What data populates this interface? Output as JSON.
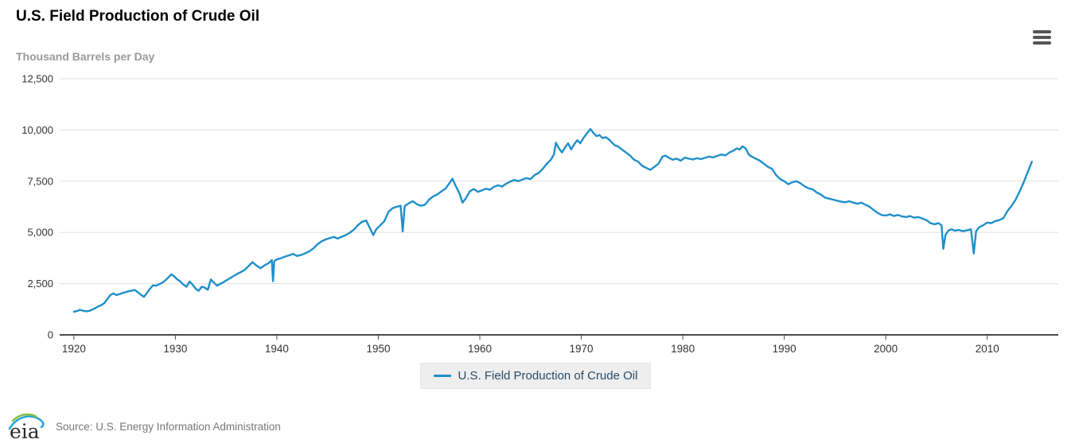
{
  "header": {
    "title": "U.S. Field Production of Crude Oil"
  },
  "toolbar": {
    "menu_icon": "hamburger-menu-icon"
  },
  "legend": {
    "label": "U.S. Field Production of Crude Oil"
  },
  "footer": {
    "logo_text": "eia",
    "source": "Source: U.S. Energy Information Administration"
  },
  "colors": {
    "line": "#1f8fca",
    "grid": "#e0e0e0",
    "axis": "#4a4a4a",
    "tick_label": "#333333",
    "subtitle": "#999999",
    "legend_text": "#294a66",
    "legend_bg": "#eeeeee",
    "menu_icon": "#555555",
    "logo_green": "#86bf40",
    "logo_blue": "#29a5dc"
  },
  "chart_data": {
    "type": "line",
    "title": "U.S. Field Production of Crude Oil",
    "ylabel": "Thousand Barrels per Day",
    "xlabel": "",
    "grid": true,
    "legend_position": "bottom-center",
    "xlim": [
      1918.6,
      2017.0
    ],
    "ylim": [
      0,
      12500
    ],
    "y_ticks": [
      {
        "v": 0,
        "label": "0"
      },
      {
        "v": 2500,
        "label": "2,500"
      },
      {
        "v": 5000,
        "label": "5,000"
      },
      {
        "v": 7500,
        "label": "7,500"
      },
      {
        "v": 10000,
        "label": "10,000"
      },
      {
        "v": 12500,
        "label": "12,500"
      }
    ],
    "x_ticks": [
      {
        "v": 1920,
        "label": "1920"
      },
      {
        "v": 1930,
        "label": "1930"
      },
      {
        "v": 1940,
        "label": "1940"
      },
      {
        "v": 1950,
        "label": "1950"
      },
      {
        "v": 1960,
        "label": "1960"
      },
      {
        "v": 1970,
        "label": "1970"
      },
      {
        "v": 1980,
        "label": "1980"
      },
      {
        "v": 1990,
        "label": "1990"
      },
      {
        "v": 2000,
        "label": "2000"
      },
      {
        "v": 2010,
        "label": "2010"
      }
    ],
    "series": [
      {
        "name": "U.S. Field Production of Crude Oil",
        "color": "#1f8fca",
        "points": [
          [
            1920.0,
            1130
          ],
          [
            1920.3,
            1160
          ],
          [
            1920.6,
            1220
          ],
          [
            1920.9,
            1180
          ],
          [
            1921.2,
            1150
          ],
          [
            1921.5,
            1170
          ],
          [
            1921.8,
            1230
          ],
          [
            1922.1,
            1300
          ],
          [
            1922.4,
            1390
          ],
          [
            1922.7,
            1450
          ],
          [
            1923.0,
            1550
          ],
          [
            1923.3,
            1750
          ],
          [
            1923.6,
            1950
          ],
          [
            1923.9,
            2020
          ],
          [
            1924.2,
            1940
          ],
          [
            1924.5,
            1990
          ],
          [
            1924.8,
            2040
          ],
          [
            1925.1,
            2080
          ],
          [
            1925.4,
            2130
          ],
          [
            1925.7,
            2160
          ],
          [
            1926.0,
            2190
          ],
          [
            1926.3,
            2080
          ],
          [
            1926.6,
            1960
          ],
          [
            1926.9,
            1850
          ],
          [
            1927.2,
            2050
          ],
          [
            1927.5,
            2250
          ],
          [
            1927.8,
            2420
          ],
          [
            1928.1,
            2400
          ],
          [
            1928.4,
            2470
          ],
          [
            1928.7,
            2540
          ],
          [
            1929.0,
            2650
          ],
          [
            1929.3,
            2800
          ],
          [
            1929.6,
            2950
          ],
          [
            1929.9,
            2850
          ],
          [
            1930.2,
            2700
          ],
          [
            1930.5,
            2600
          ],
          [
            1930.8,
            2450
          ],
          [
            1931.1,
            2350
          ],
          [
            1931.4,
            2600
          ],
          [
            1931.7,
            2450
          ],
          [
            1932.0,
            2250
          ],
          [
            1932.3,
            2150
          ],
          [
            1932.6,
            2350
          ],
          [
            1932.9,
            2300
          ],
          [
            1933.2,
            2200
          ],
          [
            1933.5,
            2700
          ],
          [
            1933.8,
            2550
          ],
          [
            1934.1,
            2400
          ],
          [
            1934.4,
            2480
          ],
          [
            1934.7,
            2560
          ],
          [
            1935.0,
            2650
          ],
          [
            1935.3,
            2740
          ],
          [
            1935.6,
            2830
          ],
          [
            1936.0,
            2950
          ],
          [
            1936.4,
            3050
          ],
          [
            1936.8,
            3160
          ],
          [
            1937.2,
            3350
          ],
          [
            1937.6,
            3550
          ],
          [
            1938.0,
            3380
          ],
          [
            1938.4,
            3250
          ],
          [
            1938.8,
            3400
          ],
          [
            1939.2,
            3500
          ],
          [
            1939.5,
            3650
          ],
          [
            1939.62,
            2620
          ],
          [
            1939.75,
            3600
          ],
          [
            1940.0,
            3680
          ],
          [
            1940.4,
            3740
          ],
          [
            1940.8,
            3820
          ],
          [
            1941.2,
            3880
          ],
          [
            1941.6,
            3950
          ],
          [
            1942.0,
            3850
          ],
          [
            1942.4,
            3900
          ],
          [
            1942.8,
            3980
          ],
          [
            1943.2,
            4080
          ],
          [
            1943.6,
            4220
          ],
          [
            1944.0,
            4420
          ],
          [
            1944.4,
            4560
          ],
          [
            1944.8,
            4660
          ],
          [
            1945.2,
            4720
          ],
          [
            1945.6,
            4780
          ],
          [
            1946.0,
            4700
          ],
          [
            1946.4,
            4790
          ],
          [
            1946.8,
            4870
          ],
          [
            1947.2,
            4990
          ],
          [
            1947.6,
            5140
          ],
          [
            1948.0,
            5360
          ],
          [
            1948.4,
            5520
          ],
          [
            1948.8,
            5580
          ],
          [
            1949.2,
            5180
          ],
          [
            1949.5,
            4870
          ],
          [
            1949.8,
            5150
          ],
          [
            1950.2,
            5350
          ],
          [
            1950.6,
            5550
          ],
          [
            1951.0,
            6000
          ],
          [
            1951.4,
            6180
          ],
          [
            1951.8,
            6250
          ],
          [
            1952.2,
            6300
          ],
          [
            1952.4,
            5050
          ],
          [
            1952.6,
            6280
          ],
          [
            1953.0,
            6420
          ],
          [
            1953.4,
            6520
          ],
          [
            1953.8,
            6380
          ],
          [
            1954.2,
            6300
          ],
          [
            1954.6,
            6350
          ],
          [
            1955.0,
            6600
          ],
          [
            1955.4,
            6750
          ],
          [
            1955.8,
            6850
          ],
          [
            1956.2,
            7000
          ],
          [
            1956.6,
            7130
          ],
          [
            1957.0,
            7400
          ],
          [
            1957.3,
            7620
          ],
          [
            1957.6,
            7300
          ],
          [
            1958.0,
            6900
          ],
          [
            1958.3,
            6450
          ],
          [
            1958.6,
            6650
          ],
          [
            1959.0,
            7000
          ],
          [
            1959.4,
            7120
          ],
          [
            1959.8,
            6980
          ],
          [
            1960.2,
            7050
          ],
          [
            1960.6,
            7130
          ],
          [
            1961.0,
            7080
          ],
          [
            1961.4,
            7230
          ],
          [
            1961.8,
            7300
          ],
          [
            1962.2,
            7240
          ],
          [
            1962.6,
            7380
          ],
          [
            1963.0,
            7480
          ],
          [
            1963.4,
            7560
          ],
          [
            1963.8,
            7500
          ],
          [
            1964.2,
            7580
          ],
          [
            1964.6,
            7650
          ],
          [
            1965.0,
            7600
          ],
          [
            1965.4,
            7800
          ],
          [
            1965.8,
            7900
          ],
          [
            1966.2,
            8100
          ],
          [
            1966.6,
            8350
          ],
          [
            1967.0,
            8550
          ],
          [
            1967.3,
            8800
          ],
          [
            1967.5,
            9380
          ],
          [
            1967.8,
            9100
          ],
          [
            1968.1,
            8900
          ],
          [
            1968.4,
            9150
          ],
          [
            1968.7,
            9350
          ],
          [
            1969.0,
            9050
          ],
          [
            1969.3,
            9300
          ],
          [
            1969.6,
            9500
          ],
          [
            1969.9,
            9350
          ],
          [
            1970.2,
            9600
          ],
          [
            1970.5,
            9800
          ],
          [
            1970.9,
            10044
          ],
          [
            1971.2,
            9850
          ],
          [
            1971.5,
            9700
          ],
          [
            1971.8,
            9750
          ],
          [
            1972.1,
            9600
          ],
          [
            1972.4,
            9650
          ],
          [
            1972.7,
            9550
          ],
          [
            1973.0,
            9400
          ],
          [
            1973.3,
            9250
          ],
          [
            1973.6,
            9200
          ],
          [
            1974.0,
            9050
          ],
          [
            1974.4,
            8900
          ],
          [
            1974.8,
            8750
          ],
          [
            1975.2,
            8550
          ],
          [
            1975.6,
            8450
          ],
          [
            1976.0,
            8250
          ],
          [
            1976.4,
            8150
          ],
          [
            1976.8,
            8050
          ],
          [
            1977.2,
            8200
          ],
          [
            1977.6,
            8350
          ],
          [
            1978.0,
            8700
          ],
          [
            1978.3,
            8750
          ],
          [
            1978.6,
            8650
          ],
          [
            1979.0,
            8550
          ],
          [
            1979.4,
            8600
          ],
          [
            1979.8,
            8500
          ],
          [
            1980.2,
            8650
          ],
          [
            1980.6,
            8600
          ],
          [
            1981.0,
            8560
          ],
          [
            1981.4,
            8620
          ],
          [
            1981.8,
            8580
          ],
          [
            1982.2,
            8640
          ],
          [
            1982.6,
            8700
          ],
          [
            1983.0,
            8660
          ],
          [
            1983.4,
            8740
          ],
          [
            1983.8,
            8800
          ],
          [
            1984.2,
            8760
          ],
          [
            1984.6,
            8900
          ],
          [
            1985.0,
            9000
          ],
          [
            1985.3,
            9100
          ],
          [
            1985.6,
            9050
          ],
          [
            1985.9,
            9200
          ],
          [
            1986.2,
            9100
          ],
          [
            1986.5,
            8800
          ],
          [
            1986.8,
            8700
          ],
          [
            1987.2,
            8600
          ],
          [
            1987.6,
            8500
          ],
          [
            1988.0,
            8350
          ],
          [
            1988.4,
            8200
          ],
          [
            1988.8,
            8100
          ],
          [
            1989.2,
            7800
          ],
          [
            1989.6,
            7600
          ],
          [
            1990.0,
            7500
          ],
          [
            1990.4,
            7350
          ],
          [
            1990.8,
            7450
          ],
          [
            1991.2,
            7500
          ],
          [
            1991.6,
            7400
          ],
          [
            1992.0,
            7250
          ],
          [
            1992.4,
            7150
          ],
          [
            1992.8,
            7100
          ],
          [
            1993.2,
            6950
          ],
          [
            1993.6,
            6850
          ],
          [
            1994.0,
            6700
          ],
          [
            1994.4,
            6650
          ],
          [
            1994.8,
            6600
          ],
          [
            1995.2,
            6550
          ],
          [
            1995.6,
            6500
          ],
          [
            1996.0,
            6470
          ],
          [
            1996.4,
            6520
          ],
          [
            1996.8,
            6450
          ],
          [
            1997.2,
            6400
          ],
          [
            1997.6,
            6450
          ],
          [
            1998.0,
            6350
          ],
          [
            1998.4,
            6250
          ],
          [
            1998.8,
            6100
          ],
          [
            1999.2,
            5950
          ],
          [
            1999.6,
            5850
          ],
          [
            2000.0,
            5820
          ],
          [
            2000.4,
            5880
          ],
          [
            2000.8,
            5800
          ],
          [
            2001.2,
            5850
          ],
          [
            2001.6,
            5780
          ],
          [
            2002.0,
            5750
          ],
          [
            2002.4,
            5800
          ],
          [
            2002.8,
            5720
          ],
          [
            2003.2,
            5750
          ],
          [
            2003.6,
            5680
          ],
          [
            2004.0,
            5600
          ],
          [
            2004.4,
            5450
          ],
          [
            2004.8,
            5400
          ],
          [
            2005.2,
            5450
          ],
          [
            2005.5,
            5350
          ],
          [
            2005.67,
            4200
          ],
          [
            2005.9,
            4900
          ],
          [
            2006.2,
            5100
          ],
          [
            2006.5,
            5150
          ],
          [
            2006.8,
            5080
          ],
          [
            2007.2,
            5120
          ],
          [
            2007.6,
            5060
          ],
          [
            2008.0,
            5100
          ],
          [
            2008.4,
            5150
          ],
          [
            2008.67,
            3970
          ],
          [
            2008.9,
            5050
          ],
          [
            2009.2,
            5250
          ],
          [
            2009.6,
            5350
          ],
          [
            2010.0,
            5480
          ],
          [
            2010.4,
            5450
          ],
          [
            2010.8,
            5550
          ],
          [
            2011.2,
            5600
          ],
          [
            2011.6,
            5700
          ],
          [
            2012.0,
            6050
          ],
          [
            2012.4,
            6300
          ],
          [
            2012.8,
            6600
          ],
          [
            2013.2,
            7000
          ],
          [
            2013.6,
            7450
          ],
          [
            2014.0,
            7950
          ],
          [
            2014.2,
            8200
          ],
          [
            2014.4,
            8450
          ]
        ]
      }
    ]
  }
}
